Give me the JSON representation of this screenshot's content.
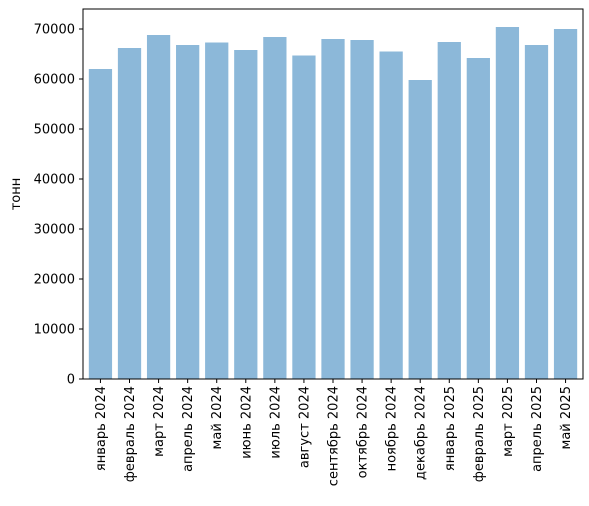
{
  "chart_data": {
    "type": "bar",
    "categories": [
      "январь 2024",
      "февраль 2024",
      "март 2024",
      "апрель 2024",
      "май 2024",
      "июнь 2024",
      "июль 2024",
      "август 2024",
      "сентябрь 2024",
      "октябрь 2024",
      "ноябрь 2024",
      "декабрь 2024",
      "январь 2025",
      "февраль 2025",
      "март 2025",
      "апрель 2025",
      "май 2025"
    ],
    "values": [
      62000,
      66200,
      68800,
      66800,
      67300,
      65800,
      68400,
      64700,
      68000,
      67800,
      65500,
      59800,
      67400,
      64200,
      70400,
      66800,
      70000
    ],
    "title": "",
    "xlabel": "",
    "ylabel": "тонн",
    "ylim": [
      0,
      74000
    ],
    "yticks": [
      0,
      10000,
      20000,
      30000,
      40000,
      50000,
      60000,
      70000
    ],
    "bar_color": "#8cb8d9",
    "grid": false,
    "legend": "none"
  }
}
